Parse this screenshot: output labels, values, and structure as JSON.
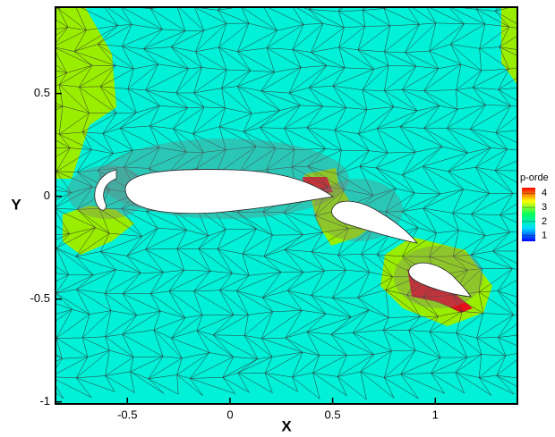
{
  "chart_data": {
    "type": "mesh",
    "x_label": "X",
    "y_label": "Y",
    "xlim": [
      -0.85,
      1.4
    ],
    "ylim": [
      -1.01,
      0.92
    ],
    "xticks": [
      -0.5,
      0,
      0.5,
      1
    ],
    "yticks": [
      -1,
      -0.5,
      0,
      0.5
    ],
    "background": {
      "p": 2,
      "color": "#00f0d8"
    },
    "regions": [
      {
        "p": 3,
        "color": "#99ee00"
      },
      {
        "p": 3,
        "color": "#99ee00"
      },
      {
        "p": 3,
        "color": "#99ee00"
      },
      {
        "p": 3,
        "color": "#99ee00"
      },
      {
        "p": 3,
        "color": "#99ee00"
      },
      {
        "p": 4,
        "color": "#e8101c"
      },
      {
        "p": 4,
        "color": "#e8101c"
      }
    ],
    "colorbar": {
      "title": "p-orde",
      "range": [
        0.6,
        4.4
      ],
      "ticks": [
        1,
        2,
        3,
        4
      ],
      "colors": [
        "#0000ff",
        "#00e0ff",
        "#00ff60",
        "#ffff00",
        "#ff0000"
      ]
    }
  }
}
